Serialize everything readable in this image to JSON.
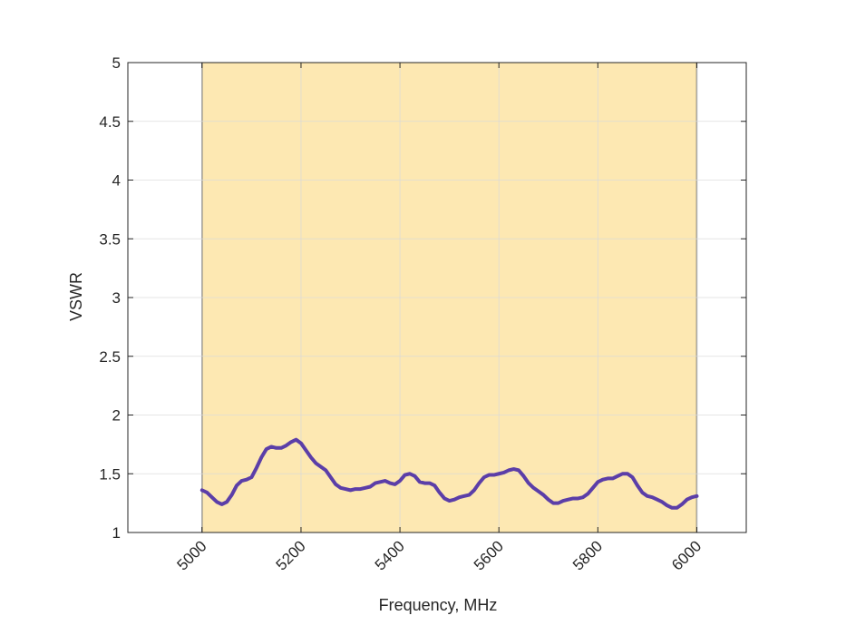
{
  "chart_data": {
    "type": "line",
    "title": "",
    "xlabel": "Frequency, MHz",
    "ylabel": "VSWR",
    "xlim": [
      4850,
      6100
    ],
    "ylim": [
      1,
      5
    ],
    "xticks": [
      5000,
      5200,
      5400,
      5600,
      5800,
      6000
    ],
    "xtick_labels": [
      "5000",
      "5200",
      "5400",
      "5600",
      "5800",
      "6000"
    ],
    "yticks": [
      1,
      1.5,
      2,
      2.5,
      3,
      3.5,
      4,
      4.5,
      5
    ],
    "ytick_labels": [
      "1",
      "1.5",
      "2",
      "2.5",
      "3",
      "3.5",
      "4",
      "4.5",
      "5"
    ],
    "grid": true,
    "band": {
      "x_start": 5000,
      "x_end": 6000,
      "color": "#fde8b2"
    },
    "series": [
      {
        "color": "#5b3ea8",
        "x": [
          5000,
          5010,
          5020,
          5030,
          5040,
          5050,
          5060,
          5070,
          5080,
          5090,
          5100,
          5110,
          5120,
          5130,
          5140,
          5150,
          5160,
          5170,
          5180,
          5190,
          5200,
          5210,
          5220,
          5230,
          5240,
          5250,
          5260,
          5270,
          5280,
          5290,
          5300,
          5310,
          5320,
          5330,
          5340,
          5350,
          5360,
          5370,
          5380,
          5390,
          5400,
          5410,
          5420,
          5430,
          5440,
          5450,
          5460,
          5470,
          5480,
          5490,
          5500,
          5510,
          5520,
          5530,
          5540,
          5550,
          5560,
          5570,
          5580,
          5590,
          5600,
          5610,
          5620,
          5630,
          5640,
          5650,
          5660,
          5670,
          5680,
          5690,
          5700,
          5710,
          5720,
          5730,
          5740,
          5750,
          5760,
          5770,
          5780,
          5790,
          5800,
          5810,
          5820,
          5830,
          5840,
          5850,
          5860,
          5870,
          5880,
          5890,
          5900,
          5910,
          5920,
          5930,
          5940,
          5950,
          5960,
          5970,
          5980,
          5990,
          6000
        ],
        "values": [
          1.36,
          1.34,
          1.3,
          1.26,
          1.24,
          1.26,
          1.32,
          1.4,
          1.44,
          1.45,
          1.47,
          1.55,
          1.64,
          1.71,
          1.73,
          1.72,
          1.72,
          1.74,
          1.77,
          1.79,
          1.76,
          1.7,
          1.64,
          1.59,
          1.56,
          1.53,
          1.47,
          1.41,
          1.38,
          1.37,
          1.36,
          1.37,
          1.37,
          1.38,
          1.39,
          1.42,
          1.43,
          1.44,
          1.42,
          1.41,
          1.44,
          1.49,
          1.5,
          1.48,
          1.43,
          1.42,
          1.42,
          1.4,
          1.34,
          1.29,
          1.27,
          1.28,
          1.3,
          1.31,
          1.32,
          1.36,
          1.42,
          1.47,
          1.49,
          1.49,
          1.5,
          1.51,
          1.53,
          1.54,
          1.53,
          1.48,
          1.42,
          1.38,
          1.35,
          1.32,
          1.28,
          1.25,
          1.25,
          1.27,
          1.28,
          1.29,
          1.29,
          1.3,
          1.33,
          1.38,
          1.43,
          1.45,
          1.46,
          1.46,
          1.48,
          1.5,
          1.5,
          1.47,
          1.4,
          1.34,
          1.31,
          1.3,
          1.28,
          1.26,
          1.23,
          1.21,
          1.21,
          1.24,
          1.28,
          1.3,
          1.31
        ]
      }
    ]
  },
  "style": {
    "axes_color": "#262626",
    "grid_color": "#d9d9d9",
    "background": "#ffffff"
  }
}
